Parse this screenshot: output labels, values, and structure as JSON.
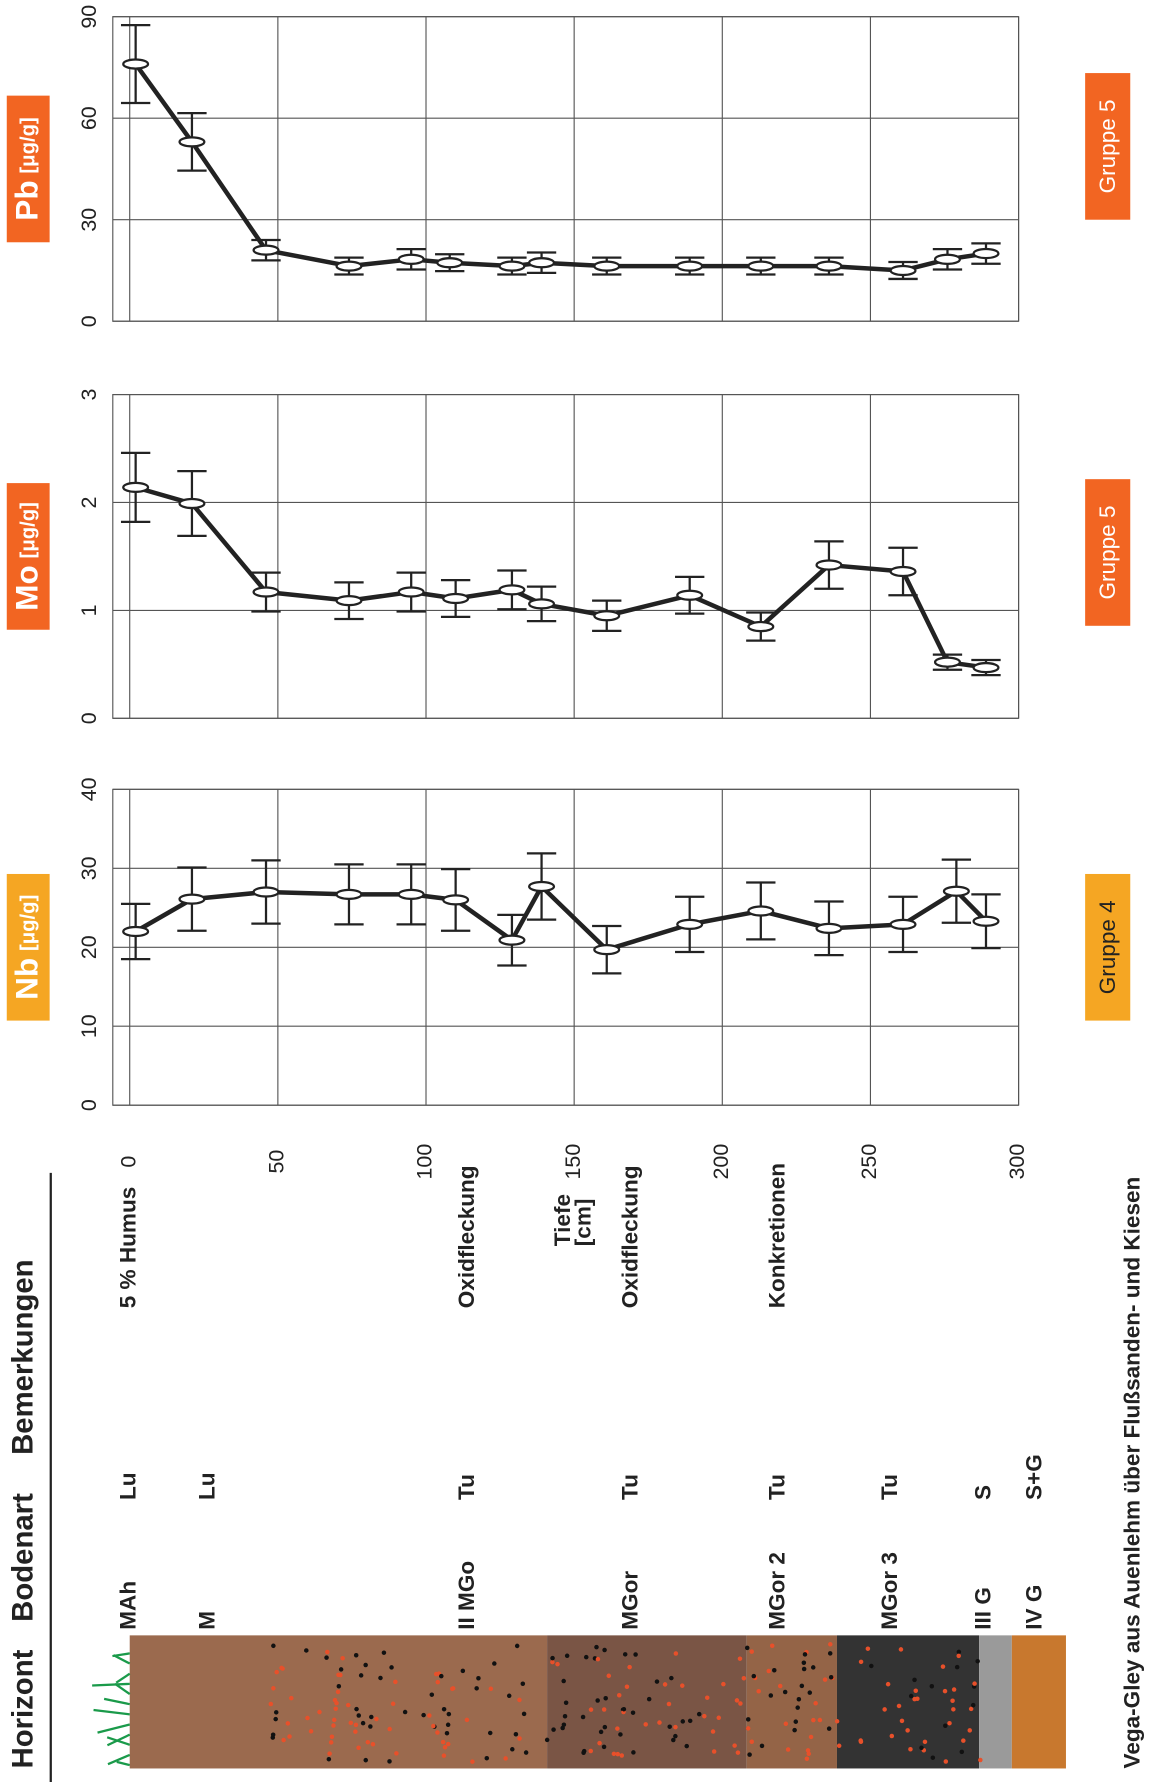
{
  "header": {
    "columns": [
      "Horizont",
      "Bodenart",
      "Bemerkungen"
    ]
  },
  "horizons": [
    {
      "horizon": "MAh",
      "soil": "Lu",
      "remark": "5 % Humus"
    },
    {
      "horizon": "M",
      "soil": "Lu"
    },
    {
      "horizon": "II MGo",
      "soil": "Tu",
      "remark": "Oxidfleckung"
    },
    {
      "horizon": "MGor",
      "soil": "Tu",
      "remark": "Oxidfleckung"
    },
    {
      "horizon": "MGor 2",
      "soil": "Tu",
      "remark": "Konkretionen"
    },
    {
      "horizon": "MGor 3",
      "soil": "Tu"
    },
    {
      "horizon": "III G",
      "soil": "S"
    },
    {
      "horizon": "IV G",
      "soil": "S+G"
    }
  ],
  "caption": "Vega-Gley aus Auenlehm über Flußsanden- und Kiesen",
  "chart_data": [
    {
      "type": "line",
      "title": "Nb",
      "unit": "[μg/g]",
      "group": "Gruppe 4",
      "color": "#222222",
      "title_color": "#f5a623",
      "xlabel": [
        "Tiefe",
        "[cm]"
      ],
      "xlim": [
        0,
        300
      ],
      "xticks": [
        0,
        50,
        100,
        150,
        200,
        250,
        300
      ],
      "ylim": [
        0,
        40
      ],
      "yticks": [
        0,
        10,
        20,
        30,
        40
      ],
      "grid": true,
      "x": [
        2,
        21,
        46,
        74,
        95,
        110,
        129,
        139,
        161,
        189,
        213,
        236,
        261,
        279,
        289
      ],
      "values": [
        22,
        26.1,
        27,
        26.7,
        26.7,
        26,
        20.9,
        27.7,
        19.7,
        22.9,
        24.6,
        22.4,
        22.9,
        27.1,
        23.3
      ],
      "errors": [
        3.5,
        4,
        4,
        3.8,
        3.8,
        3.9,
        3.2,
        4.2,
        3,
        3.5,
        3.6,
        3.4,
        3.5,
        4,
        3.4
      ]
    },
    {
      "type": "line",
      "title": "Mo",
      "unit": "[μg/g]",
      "group": "Gruppe 5",
      "color": "#222222",
      "title_color": "#f26522",
      "xlim": [
        0,
        300
      ],
      "xticks": [
        0,
        50,
        100,
        150,
        200,
        250,
        300
      ],
      "ylim": [
        0,
        3
      ],
      "yticks": [
        0,
        1,
        2,
        3
      ],
      "grid": true,
      "x": [
        2,
        21,
        46,
        74,
        95,
        110,
        129,
        139,
        161,
        189,
        213,
        236,
        261,
        276,
        289
      ],
      "values": [
        2.14,
        1.99,
        1.17,
        1.09,
        1.17,
        1.11,
        1.19,
        1.06,
        0.95,
        1.14,
        0.85,
        1.42,
        1.36,
        0.52,
        0.47
      ],
      "errors": [
        0.32,
        0.3,
        0.18,
        0.17,
        0.18,
        0.17,
        0.18,
        0.16,
        0.14,
        0.17,
        0.13,
        0.22,
        0.22,
        0.07,
        0.07
      ]
    },
    {
      "type": "line",
      "title": "Pb",
      "unit": "[μg/g]",
      "group": "Gruppe 5",
      "color": "#222222",
      "title_color": "#f26522",
      "xlim": [
        0,
        300
      ],
      "xticks": [
        0,
        50,
        100,
        150,
        200,
        250,
        300
      ],
      "ylim": [
        0,
        90
      ],
      "yticks": [
        0,
        30,
        60,
        90
      ],
      "grid": true,
      "x": [
        2,
        21,
        46,
        74,
        95,
        108,
        129,
        139,
        161,
        189,
        213,
        236,
        261,
        276,
        289
      ],
      "values": [
        76,
        53,
        21,
        16.3,
        18.3,
        17.3,
        16.3,
        17.3,
        16.3,
        16.3,
        16.3,
        16.3,
        15,
        18.3,
        20
      ],
      "errors": [
        11.5,
        8.5,
        3,
        2.5,
        3,
        2.5,
        2.5,
        3,
        2.5,
        2.5,
        2.5,
        2.5,
        2.5,
        3,
        3
      ]
    }
  ]
}
